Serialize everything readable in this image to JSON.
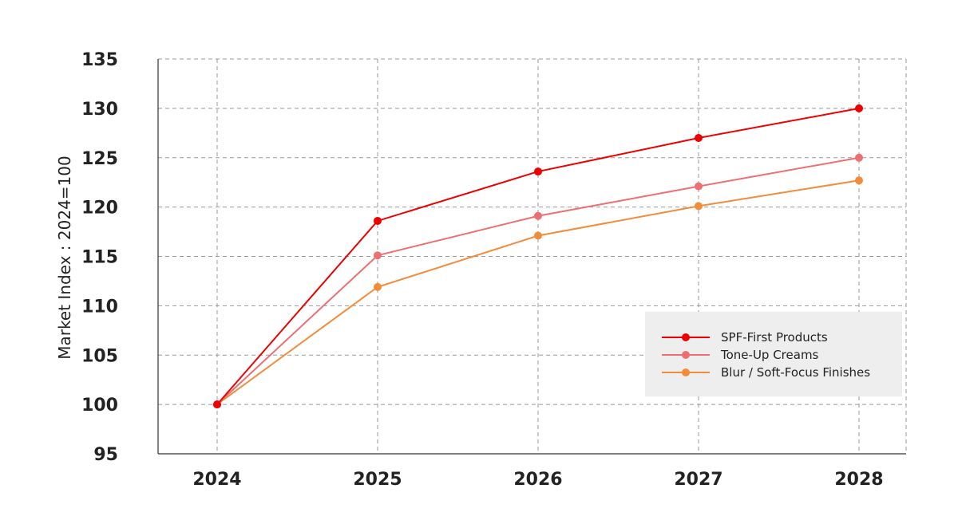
{
  "chart_data": {
    "type": "line",
    "title": "",
    "xlabel": "",
    "ylabel": "Market Index : 2024=100",
    "categories": [
      "2024",
      "2025",
      "2026",
      "2027",
      "2028"
    ],
    "ylim": [
      95,
      135
    ],
    "yticks": [
      95,
      100,
      105,
      110,
      115,
      120,
      125,
      130,
      135
    ],
    "grid": true,
    "legend_position": "bottom-right",
    "series": [
      {
        "name": "SPF-First Products",
        "color": "#ee0000",
        "values": [
          100,
          118.6,
          123.6,
          127.0,
          130.0
        ]
      },
      {
        "name": "Tone-Up Creams",
        "color": "#ee6f72",
        "values": [
          100,
          115.1,
          119.1,
          122.1,
          125.0
        ]
      },
      {
        "name": "Blur / Soft-Focus Finishes",
        "color": "#f28c3b",
        "values": [
          100,
          111.9,
          117.1,
          120.1,
          122.7
        ]
      }
    ]
  }
}
